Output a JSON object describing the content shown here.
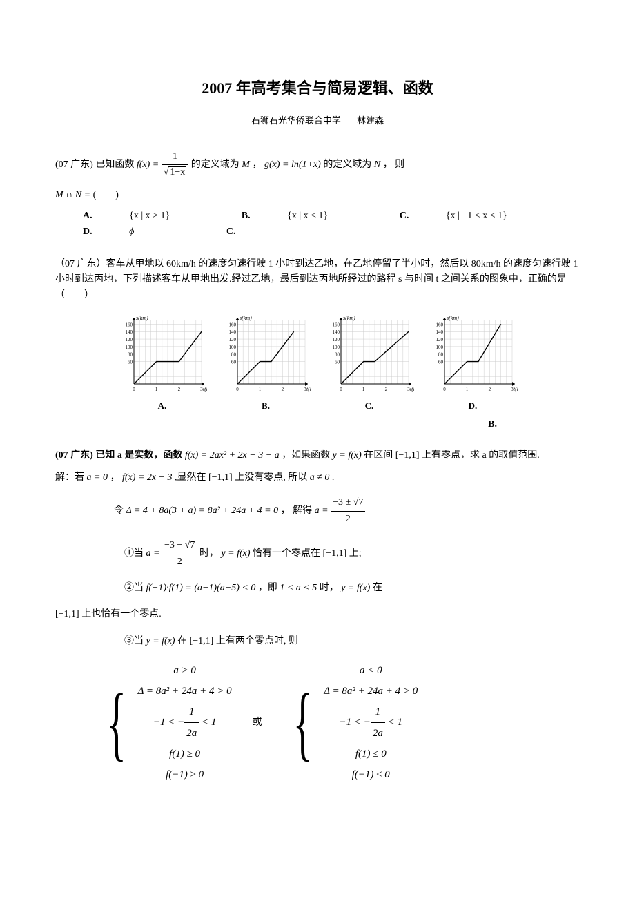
{
  "title": "2007 年高考集合与简易逻辑、函数",
  "author_school": "石狮石光华侨联合中学",
  "author_name": "林建森",
  "p1": {
    "prefix": "(07 广东) 已知函数 ",
    "fx": "f(x) = ",
    "frac_num": "1",
    "frac_den_sqrt": "1−x",
    "mid1": " 的定义域为 ",
    "M": "M",
    "mid2": " ， ",
    "gx": "g(x) = ln(1+x)",
    "mid3": " 的定义域为 ",
    "N": "N",
    "tail": " ， 则",
    "mn": "M ∩ N =",
    "paren": "(　　)",
    "optA_label": "A.",
    "optA": "{x | x > 1}",
    "optB_label": "B.",
    "optB": "{x | x < 1}",
    "optC_label": "C.",
    "optC": "{x | −1 < x < 1}",
    "optD_label": "D.",
    "optD": "ϕ",
    "answer": "C."
  },
  "p2": {
    "text1": "（07 广东）客车从甲地以 60km/h 的速度匀速行驶 1 小时到达乙地，在乙地停留了半小时，然后以 80km/h 的速度匀速行驶 1 小时到达丙地，下列描述客车从甲地出发.经过乙地，最后到达丙地所经过的路程 s 与时间 t 之间关系的图象中，正确的是（　　）",
    "answer": "B."
  },
  "charts": {
    "width": 130,
    "height": 120,
    "x_label": "t(h)",
    "y_label": "s(km)",
    "x_ticks": [
      0,
      1,
      2,
      3
    ],
    "y_ticks": [
      60,
      80,
      100,
      120,
      140,
      160
    ],
    "x_min": 0,
    "x_max": 3,
    "y_min": 0,
    "y_max": 170,
    "grid_color": "#cccccc",
    "axis_color": "#000000",
    "line_color": "#000000",
    "line_width": 1.4,
    "label_fontsize": 8,
    "tick_fontsize": 7,
    "series": {
      "A": [
        [
          0,
          0
        ],
        [
          1,
          60
        ],
        [
          2,
          60
        ],
        [
          3,
          140
        ]
      ],
      "B": [
        [
          0,
          0
        ],
        [
          1,
          60
        ],
        [
          1.5,
          60
        ],
        [
          2.5,
          140
        ]
      ],
      "C": [
        [
          0,
          0
        ],
        [
          1,
          60
        ],
        [
          1.5,
          60
        ],
        [
          3,
          140
        ]
      ],
      "D": [
        [
          0,
          0
        ],
        [
          1,
          60
        ],
        [
          1.5,
          60
        ],
        [
          2.5,
          160
        ]
      ]
    },
    "labels": [
      "A.",
      "B.",
      "C.",
      "D."
    ]
  },
  "p3": {
    "prefix": "(07 广东)  已知 a 是实数，函数 ",
    "fx": "f(x) = 2ax² + 2x − 3 − a",
    "mid": " ，如果函数 ",
    "yfx": "y = f(x)",
    "mid2": " 在区间 ",
    "interval": "[−1,1]",
    "tail": " 上有零点，求 a 的取值范围.",
    "sol0_pre": "解：若 ",
    "sol0_a0": "a = 0",
    "sol0_mid": " ， ",
    "sol0_fx": "f(x) = 2x − 3",
    "sol0_mid2": " ,显然在 ",
    "sol0_int": "[−1,1]",
    "sol0_mid3": " 上没有零点, 所以  ",
    "sol0_ane0": "a ≠ 0",
    "sol0_end": " .",
    "sol1_pre": "令  ",
    "sol1_delta": "Δ = 4 + 8a(3 + a) = 8a² + 24a + 4 = 0",
    "sol1_mid": "，  解得  ",
    "sol1_a_eq": "a = ",
    "sol1_frac_num": "−3 ± √7",
    "sol1_frac_den": "2",
    "case1_pre": "①当  ",
    "case1_a_eq": "a = ",
    "case1_frac_num": "−3 − √7",
    "case1_frac_den": "2",
    "case1_mid": " 时，   ",
    "case1_yfx": "y = f(x)",
    "case1_mid2": " 恰有一个零点在 ",
    "case1_int": "[−1,1]",
    "case1_end": " 上;",
    "case2_pre": "②当 ",
    "case2_eq": "f(−1)·f(1) = (a−1)(a−5) < 0",
    "case2_mid": "，即 ",
    "case2_range": "1 < a < 5",
    "case2_mid2": " 时， ",
    "case2_yfx": "y = f(x)",
    "case2_end": " 在",
    "case2_line2_int": "[−1,1]",
    "case2_line2_end": " 上也恰有一个零点.",
    "case3_pre": "③当 ",
    "case3_yfx": "y = f(x)",
    "case3_mid": " 在 ",
    "case3_int": "[−1,1]",
    "case3_end": " 上有两个零点时, 则",
    "sys1": {
      "l1": "a > 0",
      "l2": "Δ = 8a² + 24a + 4 > 0",
      "l3_pre": "−1 < −",
      "l3_num": "1",
      "l3_den": "2a",
      "l3_post": " < 1",
      "l4": "f(1) ≥ 0",
      "l5": "f(−1) ≥ 0"
    },
    "or": "或",
    "sys2": {
      "l1": "a < 0",
      "l2": "Δ = 8a² + 24a + 4 > 0",
      "l3_pre": "−1 < −",
      "l3_num": "1",
      "l3_den": "2a",
      "l3_post": " < 1",
      "l4": "f(1) ≤ 0",
      "l5": "f(−1) ≤ 0"
    }
  }
}
